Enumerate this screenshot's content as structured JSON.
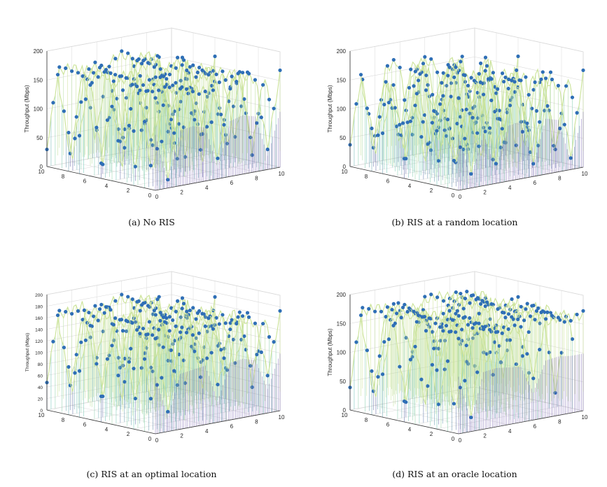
{
  "chart_data": [
    {
      "type": "surface3d",
      "caption": "(a)  No RIS",
      "zlabel": "Throughput (Mbps)",
      "zlim": [
        0,
        200
      ],
      "zticks": [
        0,
        50,
        100,
        150,
        200
      ],
      "xlim": [
        0,
        10
      ],
      "xticks": [
        0,
        2,
        4,
        6,
        8,
        10
      ],
      "ylim": [
        0,
        10
      ],
      "yticks": [
        0,
        2,
        4,
        6,
        8,
        10
      ],
      "plateau": 160,
      "grid": true,
      "series": [
        {
          "profile_x": [
            0,
            1,
            2,
            3,
            4,
            5,
            6,
            7,
            8,
            9,
            10
          ],
          "profile_z": [
            160,
            20,
            160,
            165,
            155,
            30,
            160,
            170,
            160,
            40,
            160
          ]
        }
      ]
    },
    {
      "type": "surface3d",
      "caption": "(b)  RIS at a random location",
      "zlabel": "Throughput (Mbps)",
      "zlim": [
        0,
        200
      ],
      "zticks": [
        0,
        50,
        100,
        150,
        200
      ],
      "xlim": [
        0,
        10
      ],
      "xticks": [
        0,
        2,
        4,
        6,
        8,
        10
      ],
      "ylim": [
        0,
        10
      ],
      "yticks": [
        0,
        2,
        4,
        6,
        8,
        10
      ],
      "plateau": 160,
      "grid": true,
      "series": [
        {
          "profile_x": [
            0,
            1,
            2,
            3,
            4,
            5,
            6,
            7,
            8,
            9,
            10
          ],
          "profile_z": [
            160,
            30,
            150,
            40,
            160,
            165,
            30,
            160,
            150,
            25,
            160
          ]
        }
      ]
    },
    {
      "type": "surface3d",
      "caption": "(c)  RIS at an optimal location",
      "zlabel": "Throughput (Mbps)",
      "zlim": [
        0,
        200
      ],
      "zticks": [
        0,
        20,
        40,
        60,
        80,
        100,
        120,
        140,
        160,
        180,
        200
      ],
      "xlim": [
        0,
        10
      ],
      "xticks": [
        0,
        2,
        4,
        6,
        8,
        10
      ],
      "ylim": [
        0,
        10
      ],
      "yticks": [
        0,
        2,
        4,
        6,
        8,
        10
      ],
      "plateau": 165,
      "grid": true,
      "series": [
        {
          "profile_x": [
            0,
            1,
            2,
            3,
            4,
            5,
            6,
            7,
            8,
            9,
            10
          ],
          "profile_z": [
            165,
            40,
            160,
            165,
            170,
            60,
            165,
            170,
            160,
            70,
            165
          ]
        }
      ]
    },
    {
      "type": "surface3d",
      "caption": "(d)  RIS at an oracle location",
      "zlabel": "Throughput (Mbps)",
      "zlim": [
        0,
        200
      ],
      "zticks": [
        0,
        50,
        100,
        150,
        200
      ],
      "xlim": [
        0,
        10
      ],
      "xticks": [
        0,
        2,
        4,
        6,
        8,
        10
      ],
      "ylim": [
        0,
        10
      ],
      "yticks": [
        0,
        2,
        4,
        6,
        8,
        10
      ],
      "plateau": 165,
      "grid": true,
      "series": [
        {
          "profile_x": [
            0,
            1,
            2,
            3,
            4,
            5,
            6,
            7,
            8,
            9,
            10
          ],
          "profile_z": [
            165,
            30,
            165,
            170,
            165,
            160,
            80,
            165,
            170,
            165,
            165
          ]
        }
      ]
    }
  ],
  "colors": {
    "marker": "#2f6fb6",
    "surface_high": "#f2ee8a",
    "surface_mid": "#6fc8b8",
    "surface_low": "#5b3fa0",
    "axis": "#333333",
    "grid": "#d9d9d9"
  }
}
